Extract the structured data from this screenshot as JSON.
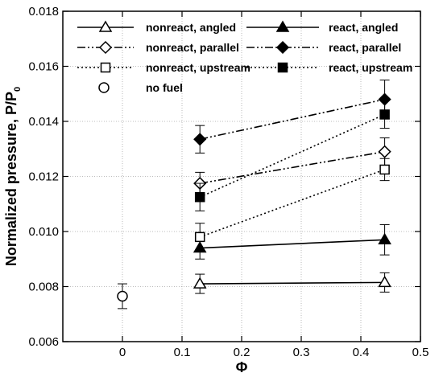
{
  "chart_data": {
    "type": "scatter",
    "xlabel": "Φ",
    "ylabel": "Normalized pressure, P/P",
    "ylabel_subscript": "0",
    "xlim": [
      -0.1,
      0.5
    ],
    "ylim": [
      0.006,
      0.018
    ],
    "x_ticks": [
      "0",
      "0.1",
      "0.2",
      "0.3",
      "0.4",
      "0.5"
    ],
    "y_ticks": [
      "0.006",
      "0.008",
      "0.010",
      "0.012",
      "0.014",
      "0.016",
      "0.018"
    ],
    "grid": true,
    "legend_placement": "top",
    "series": [
      {
        "name": "nonreact, angled",
        "marker": "triangle-open",
        "line": "solid",
        "x": [
          0.13,
          0.44
        ],
        "y": [
          0.0081,
          0.00815
        ],
        "err": [
          0.00035,
          0.00035
        ]
      },
      {
        "name": "react, angled",
        "marker": "triangle-filled",
        "line": "solid",
        "x": [
          0.13,
          0.44
        ],
        "y": [
          0.0094,
          0.0097
        ],
        "err": [
          0.0004,
          0.00055
        ]
      },
      {
        "name": "nonreact, parallel",
        "marker": "diamond-open",
        "line": "dashdotdot",
        "x": [
          0.13,
          0.44
        ],
        "y": [
          0.01175,
          0.0129
        ],
        "err": [
          0.0004,
          0.0005
        ]
      },
      {
        "name": "react, parallel",
        "marker": "diamond-filled",
        "line": "dashdotdot",
        "x": [
          0.13,
          0.44
        ],
        "y": [
          0.01335,
          0.0148
        ],
        "err": [
          0.0005,
          0.0007
        ]
      },
      {
        "name": "nonreact, upstream",
        "marker": "square-open",
        "line": "dotted",
        "x": [
          0.13,
          0.44
        ],
        "y": [
          0.0098,
          0.01225
        ],
        "err": [
          0.0005,
          0.0004
        ]
      },
      {
        "name": "react, upstream",
        "marker": "square-filled",
        "line": "dotted",
        "x": [
          0.13,
          0.44
        ],
        "y": [
          0.01125,
          0.01425
        ],
        "err": [
          0.0005,
          0.0005
        ]
      },
      {
        "name": "no fuel",
        "marker": "circle-open",
        "line": "none",
        "x": [
          0
        ],
        "y": [
          0.00765
        ],
        "err": [
          0.00045
        ]
      }
    ]
  }
}
